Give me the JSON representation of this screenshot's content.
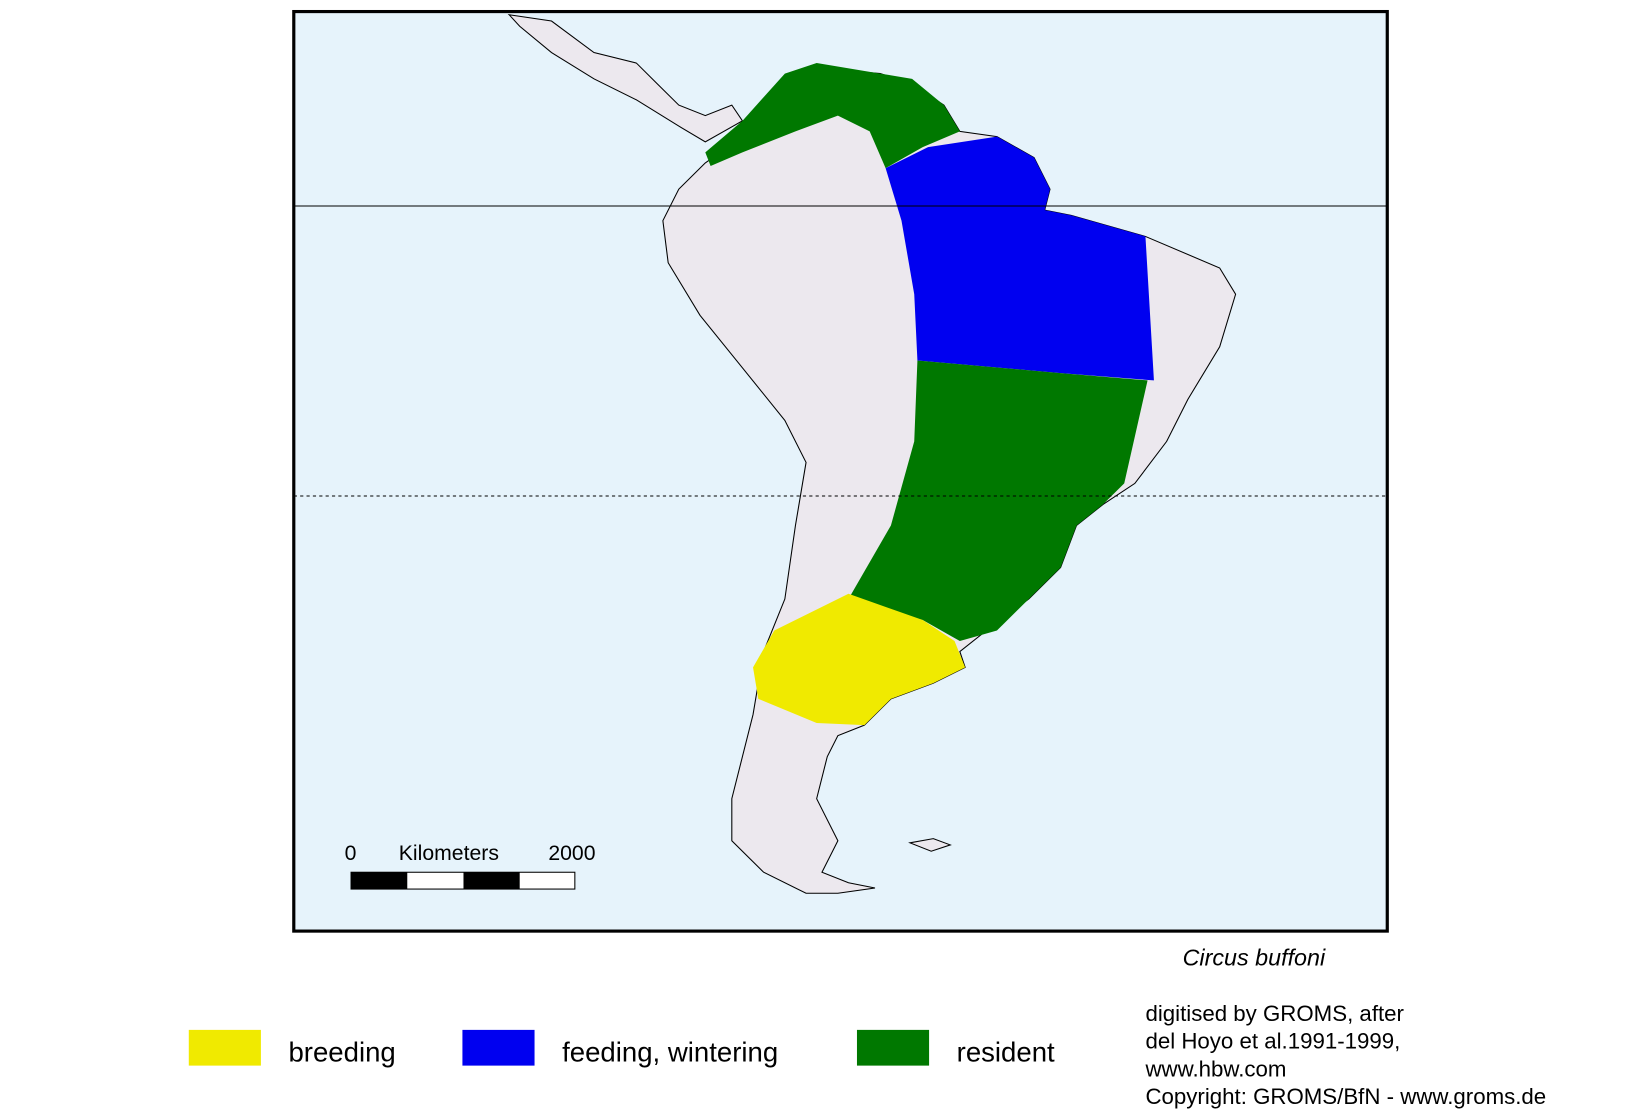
{
  "species": "Circus buffoni",
  "scale_bar": {
    "start": "0",
    "unit": "Kilometers",
    "end": "2000"
  },
  "legend": [
    {
      "label": "breeding",
      "color": "#f0ea00"
    },
    {
      "label": "feeding, wintering",
      "color": "#0000f0"
    },
    {
      "label": "resident",
      "color": "#007800"
    }
  ],
  "credits": [
    "digitised by GROMS, after",
    "del Hoyo et al.1991-1999,",
    "www.hbw.com",
    "Copyright: GROMS/BfN - www.groms.de"
  ]
}
